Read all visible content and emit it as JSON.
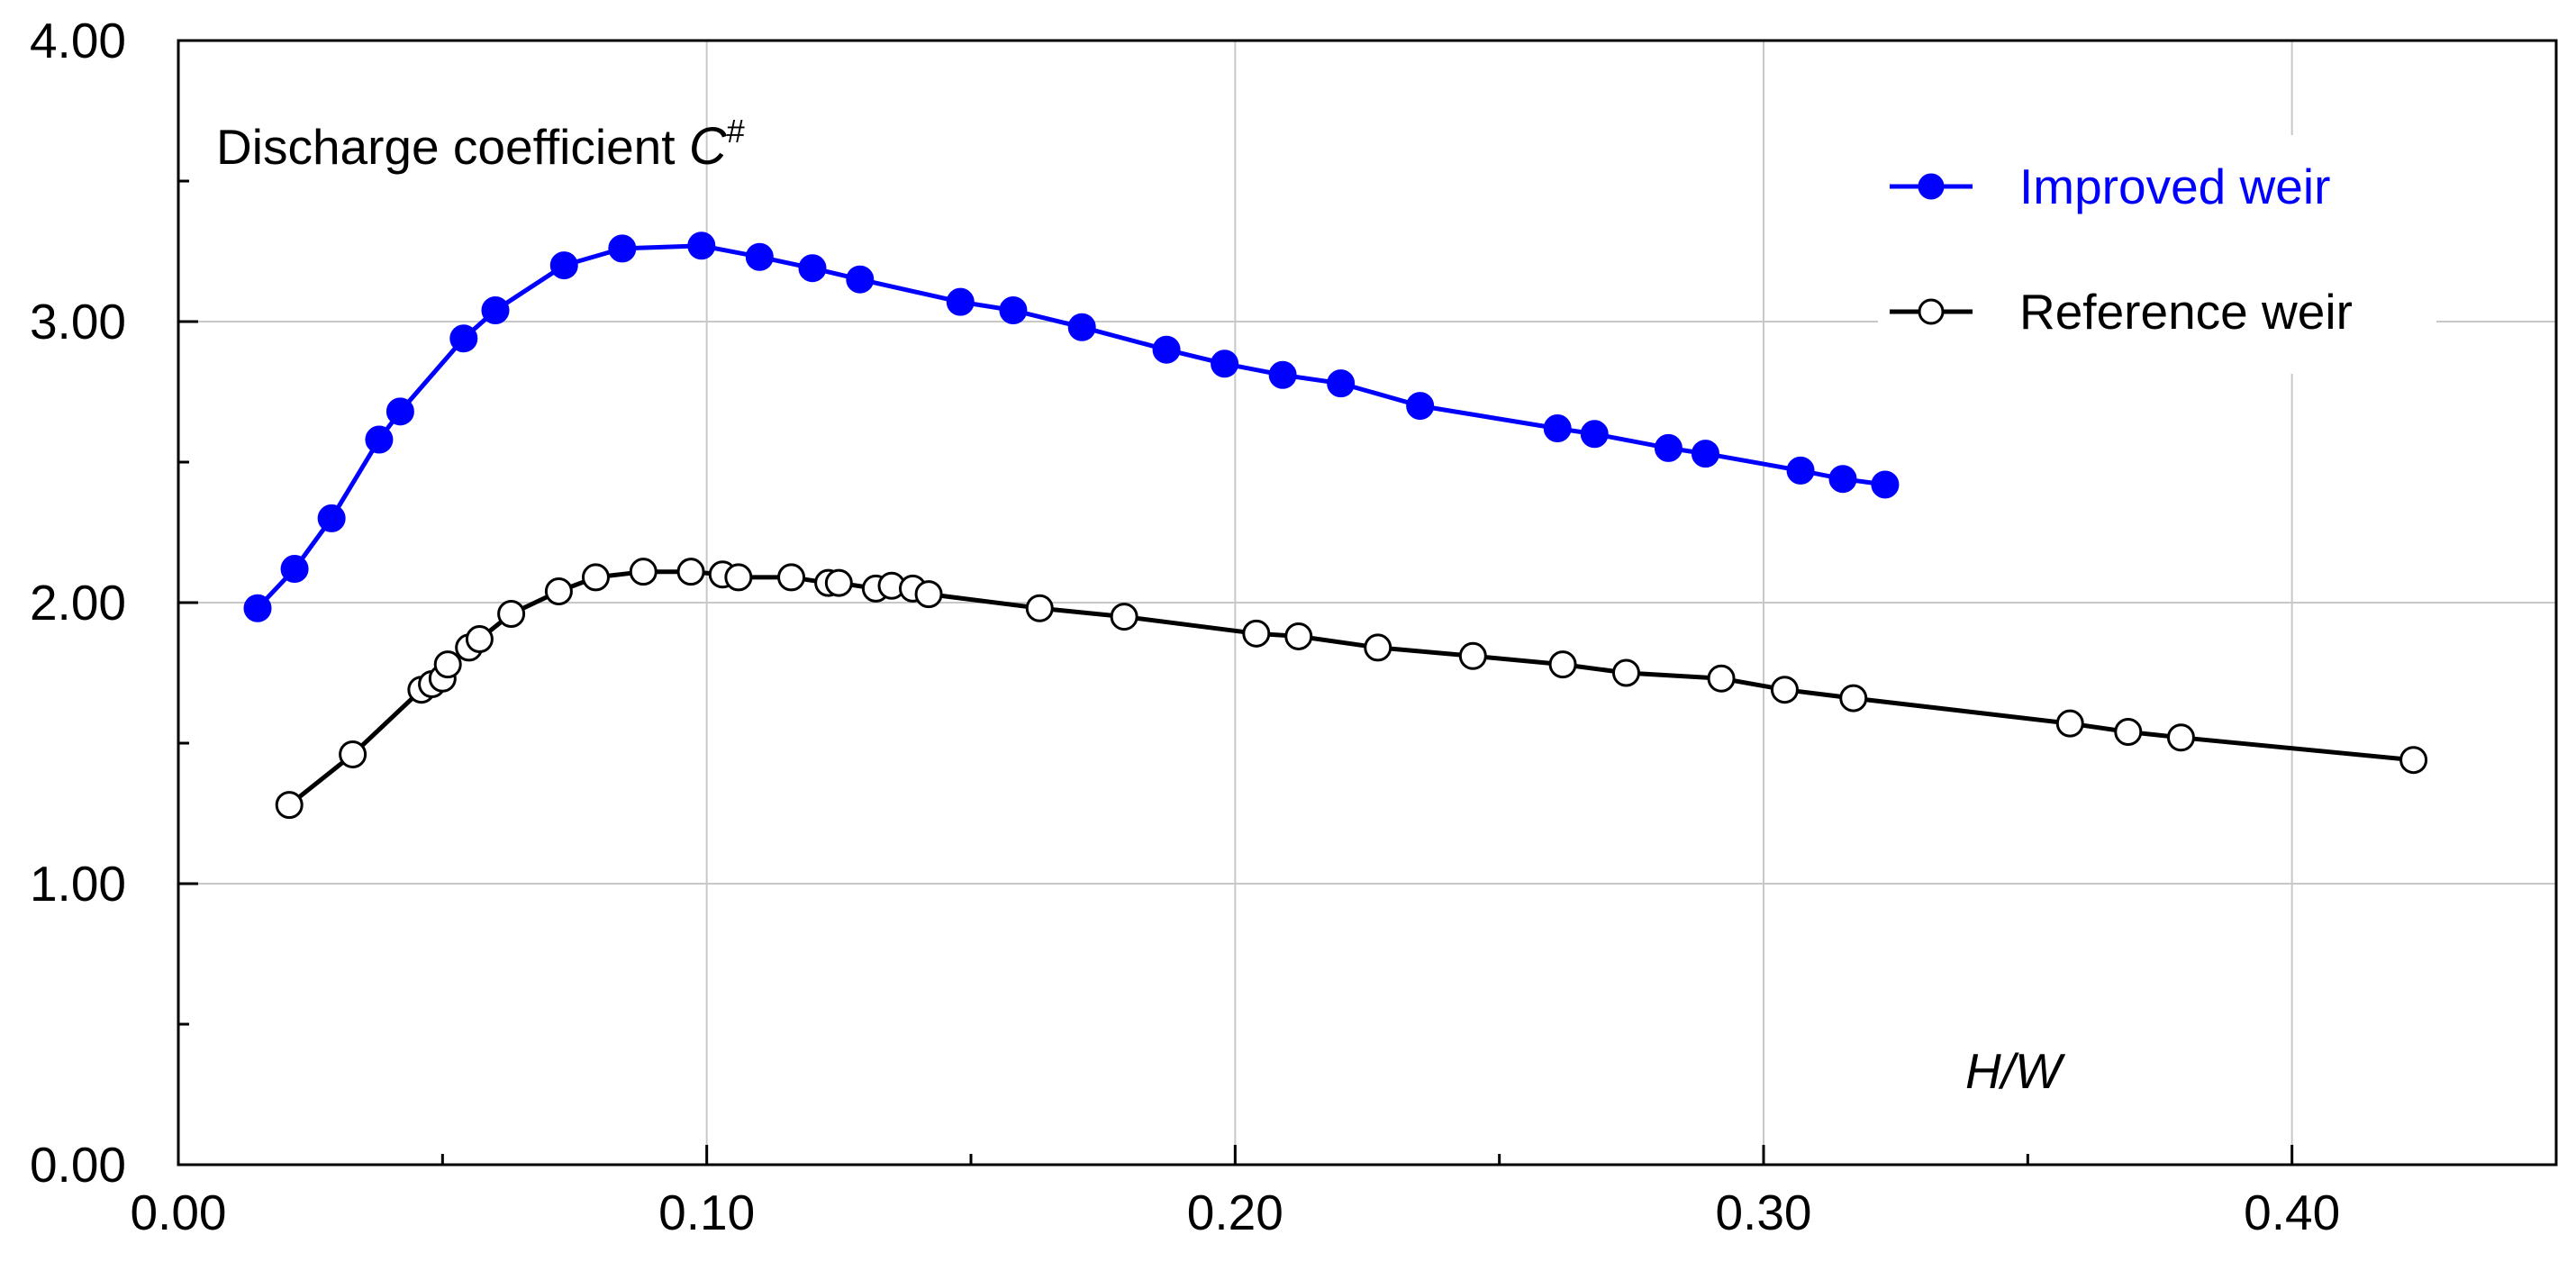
{
  "chart_data": {
    "type": "line",
    "title": "",
    "annotation_text": "Discharge coefficient ",
    "annotation_symbol": "C",
    "annotation_superscript": "#",
    "xlabel": "H/W",
    "ylabel": "",
    "xlim": [
      0,
      0.45
    ],
    "ylim": [
      0,
      4
    ],
    "x_ticks": [
      0,
      0.1,
      0.2,
      0.3,
      0.4
    ],
    "x_tick_labels": [
      "0.00",
      "0.10",
      "0.20",
      "0.30",
      "0.40"
    ],
    "x_minor_ticks": [
      0.05,
      0.15,
      0.25,
      0.35,
      0.45
    ],
    "y_ticks": [
      0,
      1,
      2,
      3,
      4
    ],
    "y_tick_labels": [
      "0.00",
      "1.00",
      "2.00",
      "3.00",
      "4.00"
    ],
    "y_minor_ticks": [
      0.5,
      1.5,
      2.5,
      3.5
    ],
    "grid": true,
    "legend_position": "top-right",
    "colors": {
      "improved": "#0000ff",
      "reference": "#000000",
      "grid": "#c8c8c8"
    },
    "series": [
      {
        "name": "Improved weir",
        "marker": "filled-circle",
        "x": [
          0.015,
          0.022,
          0.029,
          0.038,
          0.042,
          0.054,
          0.06,
          0.073,
          0.084,
          0.099,
          0.11,
          0.12,
          0.129,
          0.148,
          0.158,
          0.171,
          0.187,
          0.198,
          0.209,
          0.22,
          0.235,
          0.261,
          0.268,
          0.282,
          0.289,
          0.307,
          0.315,
          0.323
        ],
        "y": [
          1.98,
          2.12,
          2.3,
          2.58,
          2.68,
          2.94,
          3.04,
          3.2,
          3.26,
          3.27,
          3.23,
          3.19,
          3.15,
          3.07,
          3.04,
          2.98,
          2.9,
          2.85,
          2.81,
          2.78,
          2.7,
          2.62,
          2.6,
          2.55,
          2.53,
          2.47,
          2.44,
          2.42
        ]
      },
      {
        "name": "Reference weir",
        "marker": "open-circle",
        "x": [
          0.021,
          0.033,
          0.046,
          0.048,
          0.05,
          0.051,
          0.055,
          0.057,
          0.063,
          0.072,
          0.079,
          0.088,
          0.097,
          0.103,
          0.106,
          0.116,
          0.123,
          0.125,
          0.132,
          0.135,
          0.139,
          0.142,
          0.163,
          0.179,
          0.204,
          0.212,
          0.227,
          0.245,
          0.262,
          0.274,
          0.292,
          0.304,
          0.317,
          0.358,
          0.369,
          0.379,
          0.423
        ],
        "y": [
          1.28,
          1.46,
          1.69,
          1.71,
          1.73,
          1.78,
          1.84,
          1.87,
          1.96,
          2.04,
          2.09,
          2.11,
          2.11,
          2.1,
          2.09,
          2.09,
          2.07,
          2.07,
          2.05,
          2.06,
          2.05,
          2.03,
          1.98,
          1.95,
          1.89,
          1.88,
          1.84,
          1.81,
          1.78,
          1.75,
          1.73,
          1.69,
          1.66,
          1.57,
          1.54,
          1.52,
          1.44
        ]
      }
    ]
  }
}
